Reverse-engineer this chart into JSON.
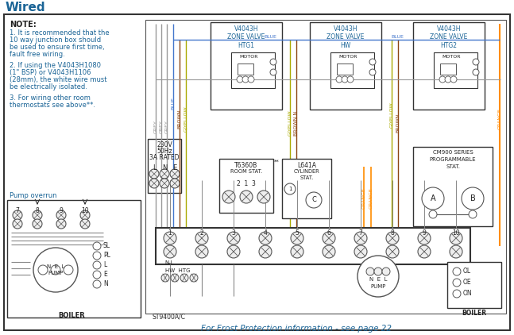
{
  "title": "Wired",
  "title_color": "#1a6496",
  "bg_color": "#ffffff",
  "border_color": "#333333",
  "note_title": "NOTE:",
  "note_lines": [
    "1. It is recommended that the",
    "10 way junction box should",
    "be used to ensure first time,",
    "fault free wiring.",
    " ",
    "2. If using the V4043H1080",
    "(1\" BSP) or V4043H1106",
    "(28mm), the white wire must",
    "be electrically isolated.",
    " ",
    "3. For wiring other room",
    "thermostats see above**."
  ],
  "pump_overrun_label": "Pump overrun",
  "bottom_text": "For Frost Protection information - see page 22",
  "bottom_text_color": "#1a6496",
  "wire_colors": {
    "grey": "#999999",
    "blue": "#4477cc",
    "brown": "#8B4513",
    "gyellow": "#aaaa00",
    "orange": "#FF8C00",
    "black": "#222222"
  },
  "zone_valve_labels": [
    "V4043H\nZONE VALVE\nHTG1",
    "V4043H\nZONE VALVE\nHW",
    "V4043H\nZONE VALVE\nHTG2"
  ],
  "boiler_labels": [
    "OL",
    "OE",
    "ON"
  ],
  "pump_boiler_labels": [
    "SL",
    "PL",
    "L",
    "E",
    "N"
  ]
}
